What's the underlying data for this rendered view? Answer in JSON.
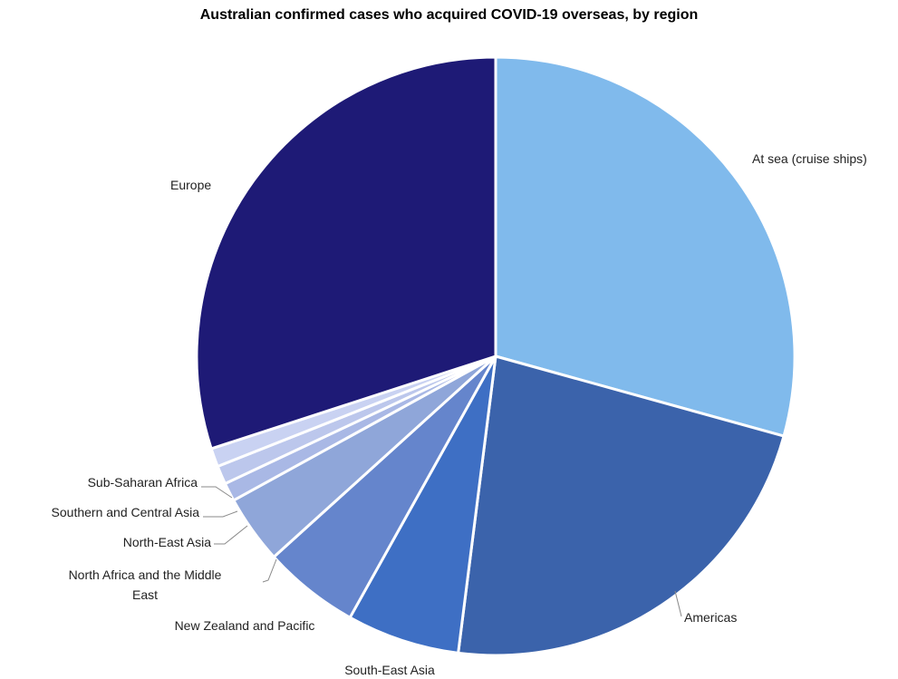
{
  "chart_data": {
    "type": "pie",
    "title": "Australian confirmed cases who acquired COVID-19 overseas, by region",
    "categories": [
      "At sea (cruise ships)",
      "Americas",
      "South-East Asia",
      "New Zealand and Pacific",
      "North Africa and the Middle East",
      "North-East Asia",
      "Southern and Central Asia",
      "Sub-Saharan Africa",
      "Europe"
    ],
    "values": [
      29.3,
      22.7,
      6.1,
      5.2,
      3.7,
      1.0,
      1.0,
      1.0,
      30.0
    ],
    "colors": [
      "#80BAEC",
      "#3B63AB",
      "#3E6FC4",
      "#6585CC",
      "#8FA6D9",
      "#A9B8E5",
      "#BCC7EC",
      "#C9D2F2",
      "#1E1A76"
    ],
    "legend": "none"
  }
}
